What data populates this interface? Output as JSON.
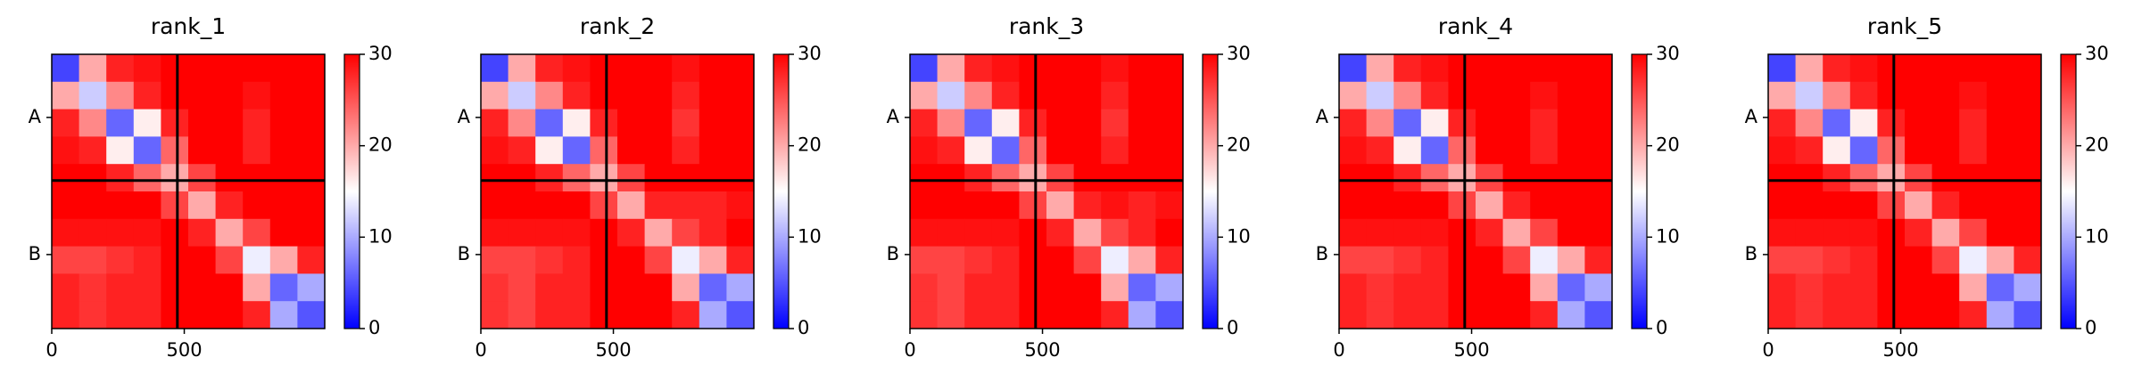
{
  "chart_data": [
    {
      "type": "heatmap",
      "title": "rank_1",
      "xlim": [
        0,
        1030
      ],
      "ylim": [
        0,
        1030
      ],
      "xticks": [
        0,
        500
      ],
      "yticks": [
        {
          "value": 237,
          "label": "A"
        },
        {
          "value": 752,
          "label": "B"
        }
      ],
      "chain_breaks": [
        474
      ],
      "clim": [
        0,
        30
      ],
      "cticks": [
        0,
        10,
        20,
        30
      ],
      "colormap": [
        "#0000ff",
        "#ffffff",
        "#ff0000"
      ],
      "values": [
        [
          4,
          20,
          28,
          29,
          30,
          30,
          30,
          30,
          30,
          30
        ],
        [
          20,
          12,
          22,
          28,
          30,
          30,
          30,
          29,
          30,
          30
        ],
        [
          28,
          22,
          6,
          16,
          28,
          30,
          30,
          28,
          30,
          30
        ],
        [
          29,
          28,
          16,
          6,
          24,
          30,
          30,
          28,
          30,
          30
        ],
        [
          30,
          30,
          28,
          24,
          20,
          26,
          30,
          30,
          30,
          30
        ],
        [
          30,
          30,
          30,
          30,
          26,
          20,
          28,
          30,
          30,
          30
        ],
        [
          29,
          29,
          29,
          29,
          30,
          28,
          20,
          26,
          30,
          30
        ],
        [
          26,
          26,
          27,
          28,
          30,
          30,
          26,
          14,
          20,
          28
        ],
        [
          28,
          27,
          28,
          28,
          30,
          30,
          30,
          20,
          6,
          10
        ],
        [
          28,
          27,
          28,
          28,
          30,
          30,
          30,
          28,
          10,
          5
        ]
      ]
    },
    {
      "type": "heatmap",
      "title": "rank_2",
      "xlim": [
        0,
        1030
      ],
      "ylim": [
        0,
        1030
      ],
      "xticks": [
        0,
        500
      ],
      "yticks": [
        {
          "value": 237,
          "label": "A"
        },
        {
          "value": 752,
          "label": "B"
        }
      ],
      "chain_breaks": [
        474
      ],
      "clim": [
        0,
        30
      ],
      "cticks": [
        0,
        10,
        20,
        30
      ],
      "colormap": [
        "#0000ff",
        "#ffffff",
        "#ff0000"
      ],
      "values": [
        [
          4,
          20,
          28,
          29,
          30,
          30,
          30,
          29,
          30,
          30
        ],
        [
          20,
          12,
          22,
          28,
          30,
          30,
          30,
          28,
          30,
          30
        ],
        [
          28,
          22,
          6,
          16,
          28,
          30,
          30,
          27,
          30,
          30
        ],
        [
          29,
          28,
          16,
          6,
          24,
          30,
          30,
          28,
          30,
          30
        ],
        [
          30,
          30,
          28,
          24,
          20,
          26,
          30,
          30,
          30,
          30
        ],
        [
          30,
          30,
          30,
          30,
          26,
          20,
          28,
          28,
          28,
          29
        ],
        [
          29,
          29,
          29,
          29,
          30,
          28,
          20,
          26,
          28,
          30
        ],
        [
          26,
          26,
          27,
          28,
          30,
          30,
          26,
          14,
          20,
          28
        ],
        [
          27,
          26,
          28,
          28,
          30,
          30,
          30,
          20,
          6,
          10
        ],
        [
          27,
          26,
          28,
          28,
          30,
          30,
          30,
          28,
          10,
          5
        ]
      ]
    },
    {
      "type": "heatmap",
      "title": "rank_3",
      "xlim": [
        0,
        1030
      ],
      "ylim": [
        0,
        1030
      ],
      "xticks": [
        0,
        500
      ],
      "yticks": [
        {
          "value": 237,
          "label": "A"
        },
        {
          "value": 752,
          "label": "B"
        }
      ],
      "chain_breaks": [
        474
      ],
      "clim": [
        0,
        30
      ],
      "cticks": [
        0,
        10,
        20,
        30
      ],
      "colormap": [
        "#0000ff",
        "#ffffff",
        "#ff0000"
      ],
      "values": [
        [
          4,
          20,
          28,
          29,
          30,
          30,
          30,
          29,
          30,
          30
        ],
        [
          20,
          12,
          22,
          28,
          30,
          30,
          30,
          28,
          30,
          30
        ],
        [
          28,
          22,
          6,
          16,
          28,
          30,
          30,
          27,
          30,
          30
        ],
        [
          29,
          28,
          16,
          6,
          24,
          30,
          30,
          28,
          30,
          30
        ],
        [
          30,
          30,
          28,
          24,
          20,
          26,
          30,
          30,
          30,
          30
        ],
        [
          30,
          30,
          30,
          30,
          26,
          20,
          28,
          29,
          28,
          29
        ],
        [
          29,
          29,
          29,
          29,
          30,
          28,
          20,
          26,
          28,
          30
        ],
        [
          26,
          26,
          27,
          28,
          30,
          30,
          26,
          14,
          20,
          28
        ],
        [
          27,
          26,
          28,
          28,
          30,
          30,
          30,
          20,
          6,
          10
        ],
        [
          27,
          26,
          28,
          28,
          30,
          30,
          30,
          28,
          10,
          5
        ]
      ]
    },
    {
      "type": "heatmap",
      "title": "rank_4",
      "xlim": [
        0,
        1030
      ],
      "ylim": [
        0,
        1030
      ],
      "xticks": [
        0,
        500
      ],
      "yticks": [
        {
          "value": 237,
          "label": "A"
        },
        {
          "value": 752,
          "label": "B"
        }
      ],
      "chain_breaks": [
        474
      ],
      "clim": [
        0,
        30
      ],
      "cticks": [
        0,
        10,
        20,
        30
      ],
      "colormap": [
        "#0000ff",
        "#ffffff",
        "#ff0000"
      ],
      "values": [
        [
          4,
          20,
          28,
          29,
          30,
          30,
          30,
          30,
          30,
          30
        ],
        [
          20,
          12,
          22,
          28,
          30,
          30,
          30,
          29,
          30,
          30
        ],
        [
          28,
          22,
          6,
          16,
          28,
          30,
          30,
          28,
          30,
          30
        ],
        [
          29,
          28,
          16,
          6,
          24,
          30,
          30,
          28,
          30,
          30
        ],
        [
          30,
          30,
          28,
          24,
          20,
          26,
          30,
          30,
          30,
          30
        ],
        [
          30,
          30,
          30,
          30,
          26,
          20,
          28,
          30,
          30,
          30
        ],
        [
          29,
          29,
          29,
          29,
          30,
          28,
          20,
          26,
          30,
          30
        ],
        [
          26,
          26,
          27,
          28,
          30,
          30,
          26,
          14,
          20,
          28
        ],
        [
          28,
          27,
          28,
          28,
          30,
          30,
          30,
          20,
          6,
          10
        ],
        [
          28,
          27,
          28,
          28,
          30,
          30,
          30,
          28,
          10,
          5
        ]
      ]
    },
    {
      "type": "heatmap",
      "title": "rank_5",
      "xlim": [
        0,
        1030
      ],
      "ylim": [
        0,
        1030
      ],
      "xticks": [
        0,
        500
      ],
      "yticks": [
        {
          "value": 237,
          "label": "A"
        },
        {
          "value": 752,
          "label": "B"
        }
      ],
      "chain_breaks": [
        474
      ],
      "clim": [
        0,
        30
      ],
      "cticks": [
        0,
        10,
        20,
        30
      ],
      "colormap": [
        "#0000ff",
        "#ffffff",
        "#ff0000"
      ],
      "values": [
        [
          4,
          20,
          28,
          29,
          30,
          30,
          30,
          30,
          30,
          30
        ],
        [
          20,
          12,
          22,
          28,
          30,
          30,
          30,
          29,
          30,
          30
        ],
        [
          28,
          22,
          6,
          16,
          28,
          30,
          30,
          28,
          30,
          30
        ],
        [
          29,
          28,
          16,
          6,
          24,
          30,
          30,
          28,
          30,
          30
        ],
        [
          30,
          30,
          28,
          24,
          20,
          26,
          30,
          30,
          30,
          30
        ],
        [
          30,
          30,
          30,
          30,
          26,
          20,
          28,
          30,
          30,
          30
        ],
        [
          29,
          29,
          29,
          29,
          30,
          28,
          20,
          26,
          30,
          30
        ],
        [
          26,
          26,
          27,
          28,
          30,
          30,
          26,
          14,
          20,
          28
        ],
        [
          28,
          27,
          28,
          28,
          30,
          30,
          30,
          20,
          6,
          10
        ],
        [
          28,
          27,
          28,
          28,
          30,
          30,
          30,
          28,
          10,
          5
        ]
      ]
    }
  ]
}
